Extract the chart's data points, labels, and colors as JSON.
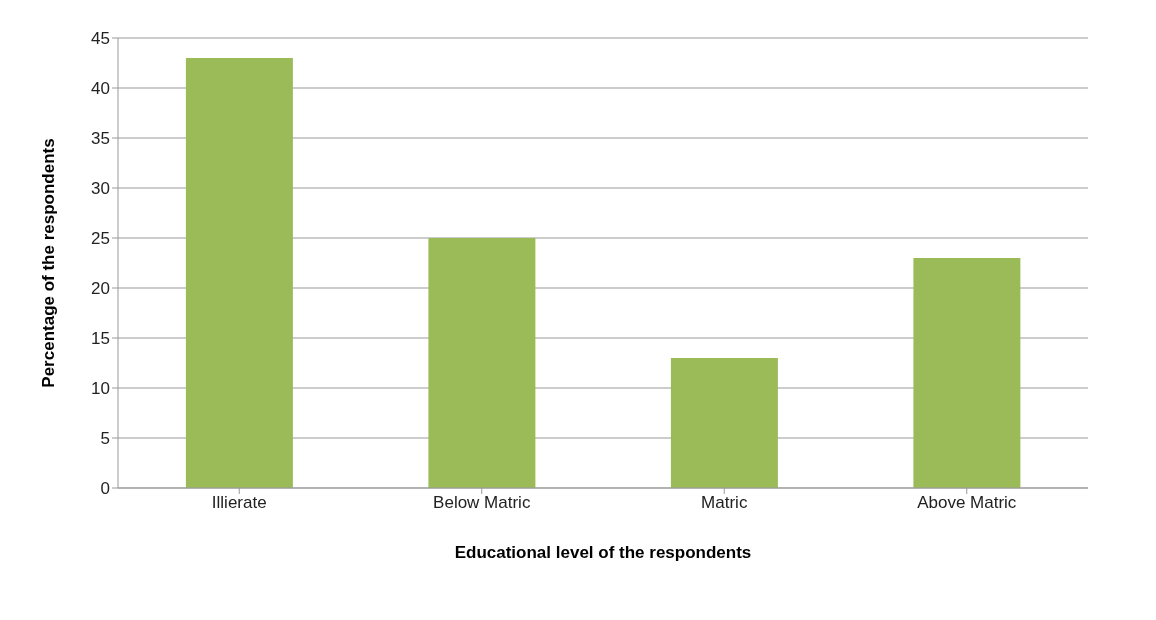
{
  "chart_data": {
    "type": "bar",
    "xlabel": "Educational level of the respondents",
    "ylabel": "Percentage of  the respondents",
    "categories": [
      "Illierate",
      "Below Matric",
      "Matric",
      "Above Matric"
    ],
    "values": [
      43,
      25,
      13,
      23
    ],
    "color": "#9bbb59",
    "ylim": [
      0,
      45
    ],
    "yticks": [
      0,
      5,
      10,
      15,
      20,
      25,
      30,
      35,
      40,
      45
    ],
    "grid": "y"
  }
}
